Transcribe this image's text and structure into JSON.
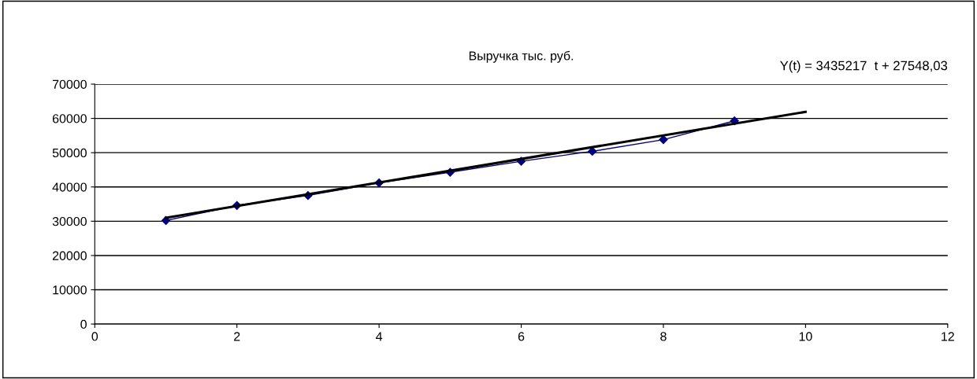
{
  "chart_data": {
    "type": "line",
    "title": "Выручка тыс. руб.",
    "x": [
      1,
      2,
      3,
      4,
      5,
      6,
      7,
      8,
      9
    ],
    "series": [
      {
        "color": "#000080",
        "marker": "diamond",
        "values": [
          30200,
          34600,
          37500,
          41200,
          44300,
          47500,
          50400,
          53800,
          59300
        ]
      },
      {
        "color": "#000000",
        "marker": "none",
        "x": [
          1,
          10
        ],
        "values": [
          31000,
          61900
        ]
      }
    ],
    "annotations": [
      "Y(t) = 3435217  t + 27548,03"
    ],
    "xlim": [
      0,
      12
    ],
    "xticks": [
      0,
      2,
      4,
      6,
      8,
      10,
      12
    ],
    "ylim": [
      0,
      70000
    ],
    "yticks": [
      0,
      10000,
      20000,
      30000,
      40000,
      50000,
      60000,
      70000
    ],
    "grid": "y",
    "legend": false
  }
}
